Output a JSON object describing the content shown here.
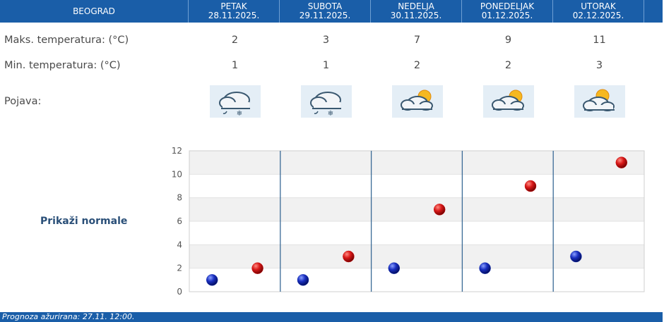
{
  "header": {
    "city": "BEOGRAD",
    "days": [
      {
        "name": "PETAK",
        "date": "28.11.2025."
      },
      {
        "name": "SUBOTA",
        "date": "29.11.2025."
      },
      {
        "name": "NEDELJA",
        "date": "30.11.2025."
      },
      {
        "name": "PONEDELJAK",
        "date": "01.12.2025."
      },
      {
        "name": "UTORAK",
        "date": "02.12.2025."
      }
    ]
  },
  "rows": {
    "max_label": "Maks. temperatura: (°C)",
    "min_label": "Min. temperatura: (°C)",
    "phenomenon_label": "Pojava:",
    "max_values": [
      "2",
      "3",
      "7",
      "9",
      "11"
    ],
    "min_values": [
      "1",
      "1",
      "2",
      "2",
      "3"
    ],
    "icons": [
      "cloud-snow-icon",
      "cloud-snow-icon",
      "partly-cloudy-icon",
      "partly-cloudy-icon",
      "partly-cloudy-icon"
    ]
  },
  "show_normals_label": "Prikaži normale",
  "footer": {
    "updated": "Prognoza ažurirana:  27.11. 12:00."
  },
  "chart_data": {
    "type": "scatter",
    "categories": [
      "PETAK",
      "SUBOTA",
      "NEDELJA",
      "PONEDELJAK",
      "UTORAK"
    ],
    "series": [
      {
        "values": [
          1,
          1,
          2,
          2,
          3
        ],
        "color": "#1530b0"
      },
      {
        "values": [
          2,
          3,
          7,
          9,
          11
        ],
        "color": "#cc1010"
      }
    ],
    "ylim": [
      0,
      12
    ],
    "yticks": [
      0,
      2,
      4,
      6,
      8,
      10,
      12
    ],
    "grid": true
  }
}
